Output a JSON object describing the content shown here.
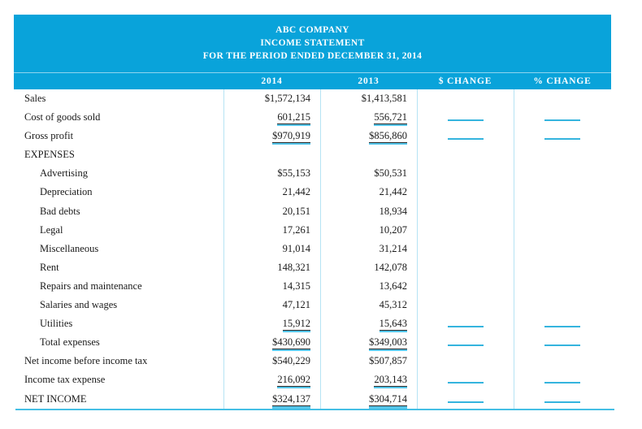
{
  "title": {
    "company": "ABC COMPANY",
    "statement": "INCOME STATEMENT",
    "period": "FOR THE PERIOD ENDED DECEMBER 31, 2014"
  },
  "columns": {
    "y2014": "2014",
    "y2013": "2013",
    "dollar_change": "$ CHANGE",
    "percent_change": "% CHANGE"
  },
  "colors": {
    "header_band": "#09a3da",
    "column_divider": "#b5e3f4",
    "underline_cyan": "#54c5e9",
    "blank_line": "#35b4de",
    "bottom_rule": "#45bfe5",
    "text": "#1a1a1a",
    "header_text": "#ffffff"
  },
  "rows": [
    {
      "label": "Sales",
      "y2014": "$1,572,134",
      "y2013": "$1,413,581",
      "indent": false,
      "underline": "none",
      "change_blank": false
    },
    {
      "label": "Cost of goods sold",
      "y2014": "601,215",
      "y2013": "556,721",
      "indent": false,
      "underline": "single",
      "change_blank": true
    },
    {
      "label": "Gross profit",
      "y2014": "$970,919",
      "y2013": "$856,860",
      "indent": false,
      "underline": "single",
      "change_blank": true
    },
    {
      "label": "EXPENSES",
      "y2014": "",
      "y2013": "",
      "indent": false,
      "underline": "none",
      "change_blank": false
    },
    {
      "label": "Advertising",
      "y2014": "$55,153",
      "y2013": "$50,531",
      "indent": true,
      "underline": "none",
      "change_blank": false
    },
    {
      "label": "Depreciation",
      "y2014": "21,442",
      "y2013": "21,442",
      "indent": true,
      "underline": "none",
      "change_blank": false
    },
    {
      "label": "Bad debts",
      "y2014": "20,151",
      "y2013": "18,934",
      "indent": true,
      "underline": "none",
      "change_blank": false
    },
    {
      "label": "Legal",
      "y2014": "17,261",
      "y2013": "10,207",
      "indent": true,
      "underline": "none",
      "change_blank": false
    },
    {
      "label": "Miscellaneous",
      "y2014": "91,014",
      "y2013": "31,214",
      "indent": true,
      "underline": "none",
      "change_blank": false
    },
    {
      "label": "Rent",
      "y2014": "148,321",
      "y2013": "142,078",
      "indent": true,
      "underline": "none",
      "change_blank": false
    },
    {
      "label": "Repairs and maintenance",
      "y2014": "14,315",
      "y2013": "13,642",
      "indent": true,
      "underline": "none",
      "change_blank": false
    },
    {
      "label": "Salaries and wages",
      "y2014": "47,121",
      "y2013": "45,312",
      "indent": true,
      "underline": "none",
      "change_blank": false
    },
    {
      "label": "Utilities",
      "y2014": "15,912",
      "y2013": "15,643",
      "indent": true,
      "underline": "single",
      "change_blank": true
    },
    {
      "label": "Total expenses",
      "y2014": "$430,690",
      "y2013": "$349,003",
      "indent": true,
      "underline": "single",
      "change_blank": true
    },
    {
      "label": "Net income before income tax",
      "y2014": "$540,229",
      "y2013": "$507,857",
      "indent": false,
      "underline": "none",
      "change_blank": false
    },
    {
      "label": "Income tax expense",
      "y2014": "216,092",
      "y2013": "203,143",
      "indent": false,
      "underline": "single",
      "change_blank": true
    },
    {
      "label": "NET INCOME",
      "y2014": "$324,137",
      "y2013": "$304,714",
      "indent": false,
      "underline": "double",
      "change_blank": true
    }
  ]
}
